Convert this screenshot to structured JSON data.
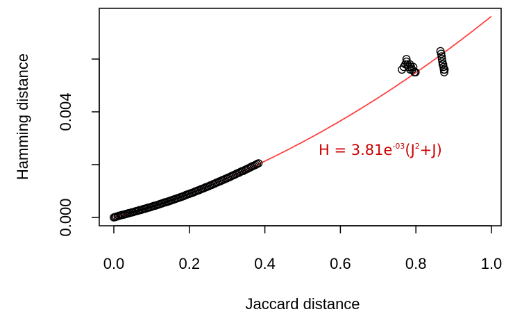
{
  "chart_data": {
    "type": "scatter",
    "xlabel": "Jaccard distance",
    "ylabel": "Hamming distance",
    "xlim": [
      0.0,
      1.0
    ],
    "ylim": [
      0.0,
      0.0075
    ],
    "x_ticks": [
      "0.0",
      "0.2",
      "0.4",
      "0.6",
      "0.8",
      "1.0"
    ],
    "x_tick_values": [
      0.0,
      0.2,
      0.4,
      0.6,
      0.8,
      1.0
    ],
    "y_ticks": [
      "0.000",
      "0.004"
    ],
    "y_tick_values": [
      0.0,
      0.004
    ],
    "y_minor_ticks": [
      0.002,
      0.006
    ],
    "fit": {
      "coef_label": "H = 3.81e",
      "coef_exp": "-03",
      "term_open": "(J",
      "term_sup": "2",
      "term_close": "+J)",
      "color": "#ff4040",
      "a": 0.00381
    },
    "point_color": "#000000",
    "series": [
      {
        "x": [
          0.0,
          0.003,
          0.006,
          0.01,
          0.013,
          0.017,
          0.02,
          0.024,
          0.028,
          0.031,
          0.035,
          0.039,
          0.043,
          0.047,
          0.051,
          0.055,
          0.059,
          0.063,
          0.067,
          0.071,
          0.075,
          0.079,
          0.083,
          0.087,
          0.091,
          0.095,
          0.099,
          0.103,
          0.107,
          0.111,
          0.115,
          0.119,
          0.123,
          0.127,
          0.131,
          0.135,
          0.139,
          0.143,
          0.147,
          0.151,
          0.155,
          0.159,
          0.163,
          0.167,
          0.171,
          0.175,
          0.179,
          0.183,
          0.187,
          0.191,
          0.195,
          0.199,
          0.203,
          0.207,
          0.211,
          0.215,
          0.219,
          0.223,
          0.227,
          0.231,
          0.235,
          0.239,
          0.243,
          0.247,
          0.251,
          0.255,
          0.259,
          0.263,
          0.267,
          0.271,
          0.275,
          0.279,
          0.283,
          0.287,
          0.291,
          0.295,
          0.299,
          0.303,
          0.307,
          0.311,
          0.315,
          0.319,
          0.323,
          0.327,
          0.331,
          0.335,
          0.339,
          0.343,
          0.347,
          0.351,
          0.355,
          0.359,
          0.363,
          0.367,
          0.371,
          0.375,
          0.379,
          0.383,
          0.763,
          0.768,
          0.772,
          0.775,
          0.778,
          0.781,
          0.784,
          0.787,
          0.79,
          0.793,
          0.796,
          0.799,
          0.775,
          0.785,
          0.865,
          0.867,
          0.868,
          0.869,
          0.87,
          0.871,
          0.872,
          0.873,
          0.874,
          0.875,
          0.876
        ],
        "y": [
          0.0,
          1e-05,
          3e-05,
          4e-05,
          6e-05,
          7e-05,
          9e-05,
          0.0001,
          0.00011,
          0.00013,
          0.00014,
          0.00016,
          0.00017,
          0.00019,
          0.0002,
          0.00022,
          0.00024,
          0.00025,
          0.00027,
          0.00028,
          0.0003,
          0.00032,
          0.00033,
          0.00035,
          0.00037,
          0.00038,
          0.0004,
          0.00042,
          0.00044,
          0.00045,
          0.00047,
          0.00049,
          0.00051,
          0.00053,
          0.00055,
          0.00057,
          0.00058,
          0.0006,
          0.00062,
          0.00064,
          0.00066,
          0.00068,
          0.0007,
          0.00072,
          0.00074,
          0.00076,
          0.00078,
          0.0008,
          0.00082,
          0.00085,
          0.00087,
          0.00089,
          0.00091,
          0.00093,
          0.00095,
          0.00098,
          0.001,
          0.00102,
          0.00104,
          0.00107,
          0.00109,
          0.00111,
          0.00114,
          0.00116,
          0.00118,
          0.00121,
          0.00123,
          0.00126,
          0.00128,
          0.00131,
          0.00133,
          0.00136,
          0.00138,
          0.00141,
          0.00143,
          0.00146,
          0.00148,
          0.00151,
          0.00153,
          0.00156,
          0.00159,
          0.00161,
          0.00164,
          0.00167,
          0.00169,
          0.00172,
          0.00175,
          0.00176,
          0.0018,
          0.00182,
          0.00185,
          0.00188,
          0.00191,
          0.00194,
          0.00196,
          0.00199,
          0.00202,
          0.00205,
          0.0056,
          0.0057,
          0.0058,
          0.0059,
          0.0058,
          0.0057,
          0.0058,
          0.0057,
          0.0056,
          0.0057,
          0.0055,
          0.0055,
          0.006,
          0.0056,
          0.0063,
          0.0062,
          0.0061,
          0.006,
          0.0059,
          0.0058,
          0.0058,
          0.0057,
          0.0056,
          0.0055,
          0.0056
        ]
      }
    ]
  }
}
